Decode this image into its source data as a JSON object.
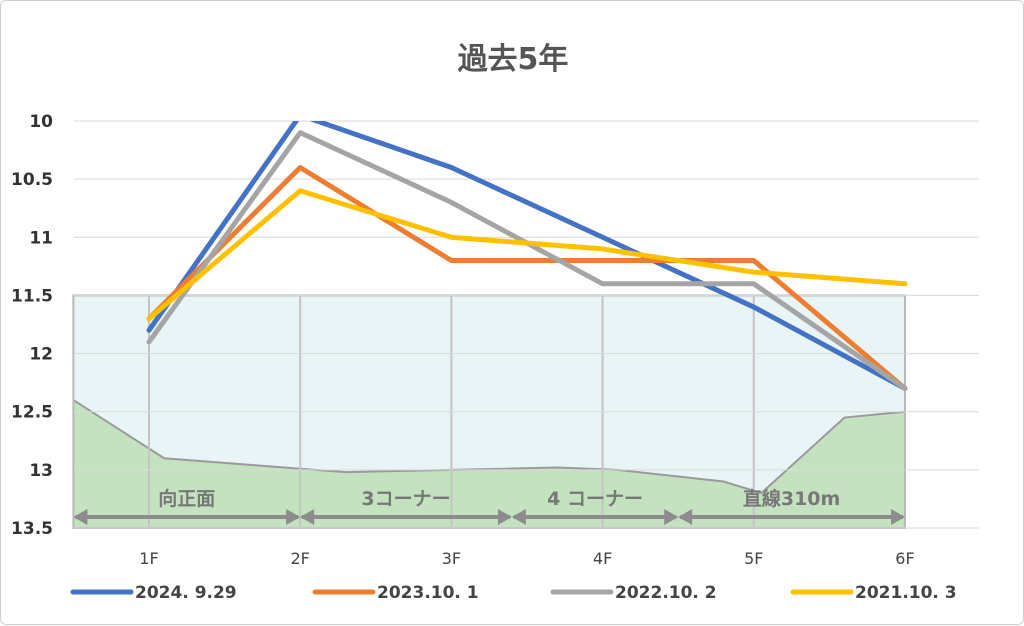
{
  "chart_data": {
    "type": "line",
    "title": "過去5年",
    "categories": [
      "1F",
      "2F",
      "3F",
      "4F",
      "5F",
      "6F"
    ],
    "y_axis": {
      "reversed": true,
      "ylim": [
        10,
        13.5
      ],
      "ticks": [
        10,
        10.5,
        11,
        11.5,
        12,
        12.5,
        13,
        13.5
      ],
      "tick_labels": [
        "10",
        "10.5",
        "11",
        "11.5",
        "12",
        "12.5",
        "13",
        "13.5"
      ]
    },
    "grid": true,
    "legend_position": "bottom",
    "series": [
      {
        "name": "2024. 9.29",
        "color": "#4472C4",
        "values": [
          11.8,
          9.95,
          10.4,
          11.0,
          11.6,
          12.3
        ]
      },
      {
        "name": "2023.10. 1",
        "color": "#ED7D31",
        "values": [
          11.7,
          10.4,
          11.2,
          11.2,
          11.2,
          12.3
        ]
      },
      {
        "name": "2022.10. 2",
        "color": "#A5A5A5",
        "values": [
          11.9,
          10.1,
          10.7,
          11.4,
          11.4,
          12.3
        ]
      },
      {
        "name": "2021.10. 3",
        "color": "#FFC000",
        "values": [
          11.7,
          10.6,
          11.0,
          11.1,
          11.3,
          11.4
        ]
      }
    ],
    "terrain": {
      "sky_color": "#E8F4F6",
      "ground_color": "#C4E2C0",
      "sky_top": 11.5,
      "profile_x": [
        0.5,
        1.1,
        2.0,
        2.3,
        3.0,
        3.7,
        4.1,
        4.8,
        5.05,
        5.6,
        6.0
      ],
      "profile_y": [
        12.4,
        12.9,
        12.99,
        13.02,
        13.0,
        12.98,
        13.0,
        13.1,
        13.2,
        12.55,
        12.5
      ]
    },
    "sections": [
      {
        "label": "向正面",
        "from": 0.5,
        "to": 2.0
      },
      {
        "label": "3コーナー",
        "from": 2.0,
        "to": 3.4
      },
      {
        "label": "4 コーナー",
        "from": 3.4,
        "to": 4.5
      },
      {
        "label": "直線310m",
        "from": 4.5,
        "to": 6.0
      }
    ]
  }
}
